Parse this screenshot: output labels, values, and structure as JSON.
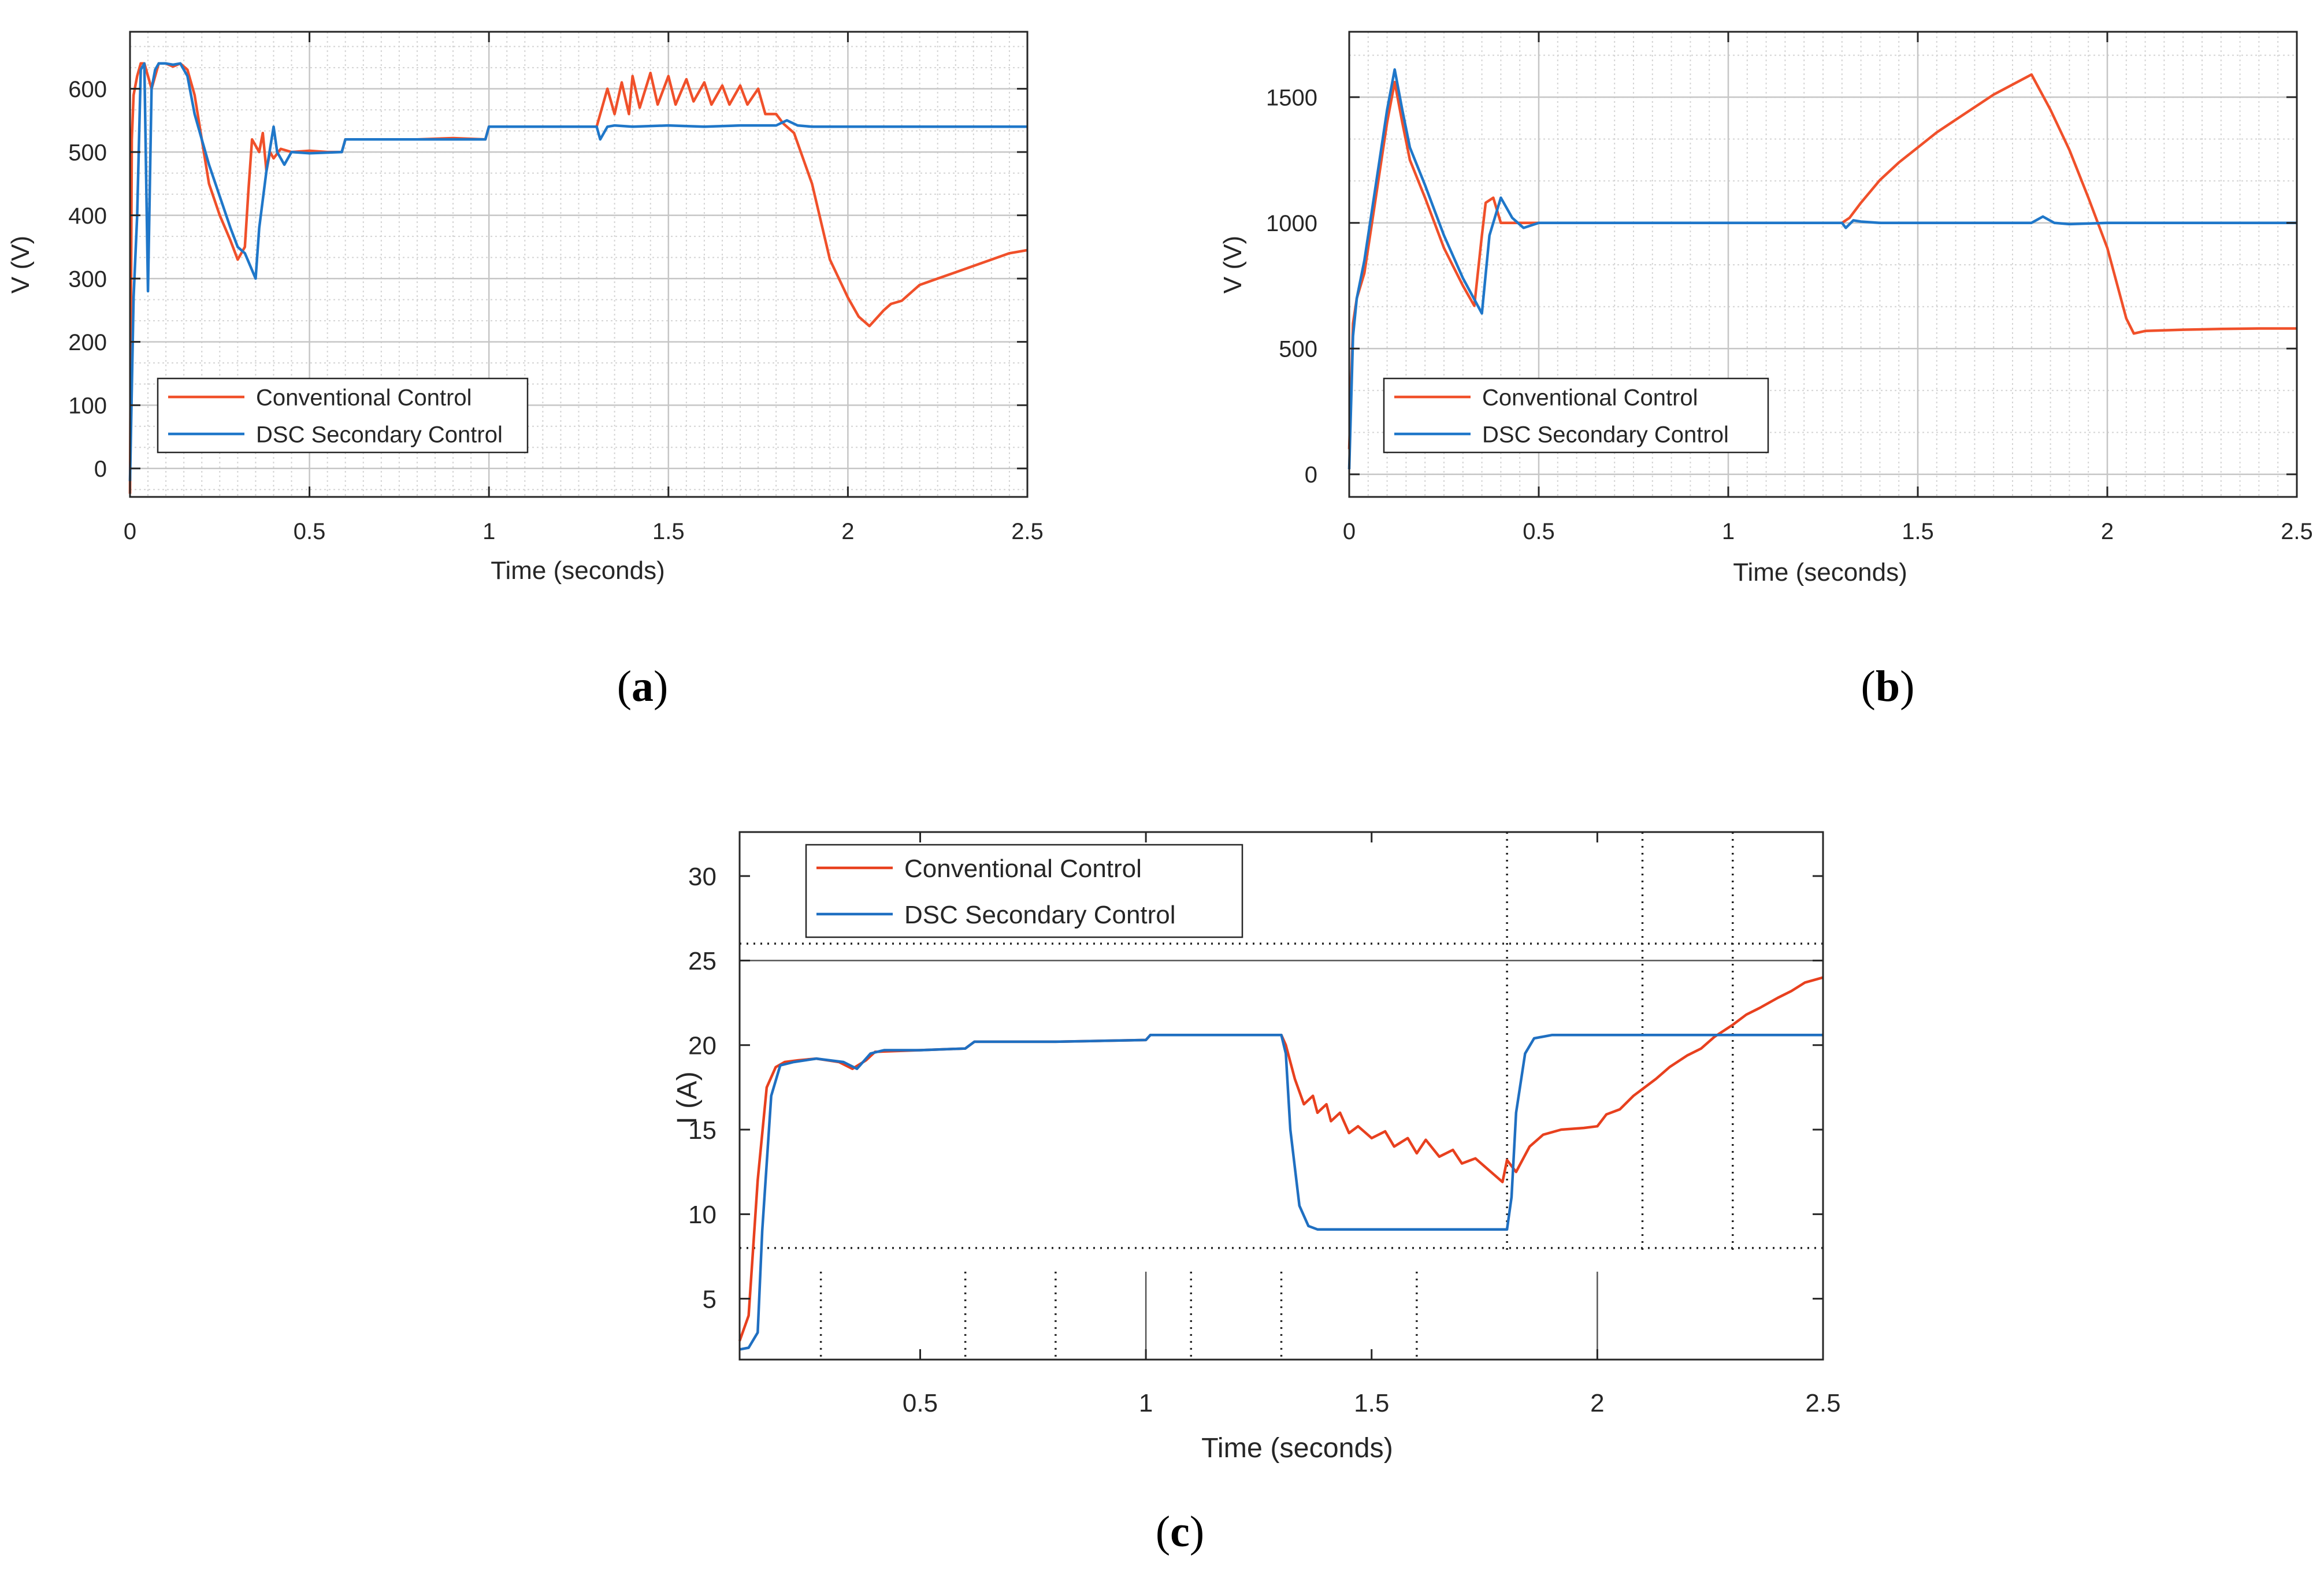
{
  "chart_data": [
    {
      "id": "a",
      "type": "line",
      "caption_letter": "a",
      "xlabel": "Time (seconds)",
      "ylabel": "V (V)",
      "xlim": [
        0,
        2.5
      ],
      "ylim": [
        -45,
        690
      ],
      "xticks": [
        0,
        0.5,
        1,
        1.5,
        2,
        2.5
      ],
      "xtick_labels": [
        "0",
        "0.5",
        "1",
        "1.5",
        "2",
        "2.5"
      ],
      "yticks": [
        0,
        100,
        200,
        300,
        400,
        500,
        600
      ],
      "ytick_labels": [
        "0",
        "100",
        "200",
        "300",
        "400",
        "500",
        "600"
      ],
      "grid": true,
      "legend_position": "bottom-left",
      "series": [
        {
          "name": "Conventional Control",
          "color": "#f0502a",
          "x": [
            0,
            0.005,
            0.01,
            0.02,
            0.03,
            0.04,
            0.05,
            0.06,
            0.08,
            0.1,
            0.12,
            0.14,
            0.16,
            0.18,
            0.2,
            0.22,
            0.25,
            0.28,
            0.3,
            0.32,
            0.33,
            0.34,
            0.36,
            0.37,
            0.38,
            0.39,
            0.4,
            0.42,
            0.45,
            0.5,
            0.55,
            0.59,
            0.6,
            0.7,
            0.8,
            0.9,
            0.99,
            1.0,
            1.1,
            1.2,
            1.3,
            1.31,
            1.33,
            1.35,
            1.37,
            1.39,
            1.4,
            1.42,
            1.45,
            1.47,
            1.5,
            1.52,
            1.55,
            1.57,
            1.6,
            1.62,
            1.65,
            1.67,
            1.7,
            1.72,
            1.75,
            1.77,
            1.8,
            1.82,
            1.85,
            1.9,
            1.95,
            2.0,
            2.03,
            2.06,
            2.1,
            2.12,
            2.15,
            2.18,
            2.2,
            2.25,
            2.3,
            2.35,
            2.4,
            2.45,
            2.5
          ],
          "y": [
            -40,
            520,
            590,
            620,
            640,
            640,
            620,
            600,
            640,
            640,
            635,
            640,
            630,
            590,
            520,
            450,
            400,
            360,
            330,
            350,
            440,
            520,
            500,
            530,
            470,
            500,
            490,
            505,
            500,
            502,
            500,
            500,
            520,
            520,
            520,
            522,
            520,
            540,
            540,
            540,
            540,
            560,
            600,
            560,
            610,
            560,
            620,
            570,
            625,
            575,
            620,
            575,
            615,
            580,
            610,
            575,
            605,
            575,
            605,
            575,
            600,
            560,
            560,
            545,
            530,
            450,
            330,
            270,
            240,
            225,
            250,
            260,
            265,
            280,
            290,
            300,
            310,
            320,
            330,
            340,
            345
          ]
        },
        {
          "name": "DSC Secondary Control",
          "color": "#1f77c9",
          "x": [
            0,
            0.01,
            0.02,
            0.03,
            0.04,
            0.05,
            0.06,
            0.07,
            0.08,
            0.1,
            0.12,
            0.14,
            0.16,
            0.18,
            0.2,
            0.22,
            0.25,
            0.28,
            0.3,
            0.32,
            0.35,
            0.36,
            0.38,
            0.4,
            0.41,
            0.43,
            0.45,
            0.5,
            0.59,
            0.6,
            0.7,
            0.8,
            0.9,
            0.99,
            1.0,
            1.1,
            1.2,
            1.3,
            1.31,
            1.33,
            1.35,
            1.4,
            1.5,
            1.6,
            1.7,
            1.8,
            1.83,
            1.86,
            1.9,
            2.0,
            2.1,
            2.2,
            2.3,
            2.4,
            2.5
          ],
          "y": [
            -20,
            270,
            400,
            630,
            640,
            280,
            600,
            630,
            640,
            640,
            638,
            640,
            620,
            560,
            520,
            480,
            430,
            380,
            350,
            340,
            300,
            380,
            470,
            540,
            500,
            480,
            500,
            498,
            500,
            520,
            520,
            520,
            520,
            520,
            540,
            540,
            540,
            540,
            520,
            540,
            542,
            540,
            542,
            540,
            542,
            542,
            550,
            542,
            540,
            540,
            540,
            540,
            540,
            540,
            540
          ]
        }
      ]
    },
    {
      "id": "b",
      "type": "line",
      "caption_letter": "b",
      "xlabel": "Time (seconds)",
      "ylabel": "V (V)",
      "xlim": [
        0,
        2.5
      ],
      "ylim": [
        -90,
        1760
      ],
      "xticks": [
        0,
        0.5,
        1,
        1.5,
        2,
        2.5
      ],
      "xtick_labels": [
        "0",
        "0.5",
        "1",
        "1.5",
        "2",
        "2.5"
      ],
      "yticks": [
        0,
        500,
        1000,
        1500
      ],
      "ytick_labels": [
        "0",
        "500",
        "1000",
        "1500"
      ],
      "grid": true,
      "legend_position": "bottom-left",
      "series": [
        {
          "name": "Conventional Control",
          "color": "#f0502a",
          "x": [
            0,
            0.01,
            0.02,
            0.04,
            0.06,
            0.08,
            0.1,
            0.12,
            0.14,
            0.16,
            0.2,
            0.25,
            0.3,
            0.33,
            0.35,
            0.36,
            0.38,
            0.4,
            0.45,
            0.5,
            0.6,
            0.8,
            1.0,
            1.2,
            1.3,
            1.32,
            1.35,
            1.4,
            1.45,
            1.5,
            1.55,
            1.6,
            1.65,
            1.7,
            1.75,
            1.8,
            1.85,
            1.9,
            1.95,
            2.0,
            2.05,
            2.07,
            2.1,
            2.2,
            2.3,
            2.4,
            2.5
          ],
          "y": [
            100,
            600,
            700,
            800,
            1000,
            1200,
            1400,
            1560,
            1400,
            1250,
            1100,
            900,
            750,
            670,
            950,
            1080,
            1100,
            1000,
            1000,
            1000,
            1000,
            1000,
            1000,
            1000,
            1000,
            1020,
            1080,
            1170,
            1240,
            1300,
            1360,
            1410,
            1460,
            1510,
            1550,
            1590,
            1450,
            1290,
            1100,
            900,
            620,
            560,
            570,
            575,
            578,
            580,
            580
          ]
        },
        {
          "name": "DSC Secondary Control",
          "color": "#1f77c9",
          "x": [
            0,
            0.01,
            0.02,
            0.04,
            0.06,
            0.08,
            0.1,
            0.12,
            0.14,
            0.16,
            0.2,
            0.25,
            0.3,
            0.35,
            0.37,
            0.4,
            0.43,
            0.46,
            0.5,
            0.6,
            0.8,
            1.0,
            1.2,
            1.3,
            1.31,
            1.33,
            1.35,
            1.4,
            1.6,
            1.8,
            1.83,
            1.86,
            1.9,
            2.0,
            2.2,
            2.5
          ],
          "y": [
            20,
            550,
            700,
            850,
            1050,
            1250,
            1450,
            1610,
            1450,
            1300,
            1150,
            950,
            780,
            640,
            950,
            1100,
            1020,
            980,
            1000,
            1000,
            1000,
            1000,
            1000,
            1000,
            980,
            1010,
            1005,
            1000,
            1000,
            1000,
            1025,
            1000,
            995,
            1000,
            1000,
            1000
          ]
        }
      ]
    },
    {
      "id": "c",
      "type": "line",
      "caption_letter": "c",
      "xlabel": "Time (seconds)",
      "ylabel": "I (A)",
      "xlim": [
        0.1,
        2.5
      ],
      "ylim": [
        1.4,
        32.6
      ],
      "xticks": [
        0.5,
        1,
        1.5,
        2,
        2.5
      ],
      "xtick_labels": [
        "0.5",
        "1",
        "1.5",
        "2",
        "2.5"
      ],
      "yticks": [
        5,
        10,
        15,
        20,
        25,
        30
      ],
      "ytick_labels": [
        "5",
        "10",
        "15",
        "20",
        "25",
        "30"
      ],
      "grid": false,
      "legend_position": "top-left",
      "series": [
        {
          "name": "Conventional Control",
          "color": "#e8401e",
          "x": [
            0.1,
            0.12,
            0.14,
            0.16,
            0.18,
            0.2,
            0.23,
            0.27,
            0.32,
            0.35,
            0.38,
            0.4,
            0.5,
            0.6,
            0.62,
            0.8,
            1.0,
            1.01,
            1.2,
            1.3,
            1.31,
            1.33,
            1.35,
            1.37,
            1.38,
            1.4,
            1.41,
            1.43,
            1.45,
            1.47,
            1.5,
            1.53,
            1.55,
            1.58,
            1.6,
            1.62,
            1.65,
            1.68,
            1.7,
            1.73,
            1.76,
            1.79,
            1.8,
            1.82,
            1.85,
            1.88,
            1.92,
            1.97,
            2.0,
            2.02,
            2.05,
            2.08,
            2.1,
            2.13,
            2.16,
            2.2,
            2.23,
            2.26,
            2.3,
            2.33,
            2.36,
            2.4,
            2.43,
            2.46,
            2.5
          ],
          "y": [
            2.5,
            4,
            12,
            17.5,
            18.7,
            19,
            19.1,
            19.2,
            19,
            18.6,
            19.1,
            19.6,
            19.7,
            19.8,
            20.2,
            20.2,
            20.3,
            20.6,
            20.6,
            20.6,
            20,
            18,
            16.5,
            17,
            16,
            16.5,
            15.5,
            16,
            14.8,
            15.2,
            14.5,
            14.9,
            14,
            14.5,
            13.6,
            14.4,
            13.4,
            13.8,
            13,
            13.3,
            12.6,
            11.9,
            13.2,
            12.5,
            14,
            14.7,
            15,
            15.1,
            15.2,
            15.9,
            16.2,
            17,
            17.4,
            18,
            18.7,
            19.4,
            19.8,
            20.5,
            21.2,
            21.8,
            22.2,
            22.8,
            23.2,
            23.7,
            24
          ]
        },
        {
          "name": "DSC Secondary Control",
          "color": "#1f6fc1",
          "x": [
            0.1,
            0.12,
            0.14,
            0.15,
            0.17,
            0.19,
            0.22,
            0.27,
            0.33,
            0.36,
            0.39,
            0.42,
            0.5,
            0.6,
            0.62,
            0.8,
            1.0,
            1.01,
            1.2,
            1.3,
            1.31,
            1.32,
            1.34,
            1.36,
            1.38,
            1.45,
            1.6,
            1.8,
            1.81,
            1.82,
            1.84,
            1.86,
            1.9,
            2.0,
            2.2,
            2.5
          ],
          "y": [
            2,
            2.1,
            3,
            9,
            17,
            18.8,
            19,
            19.2,
            19,
            18.6,
            19.5,
            19.7,
            19.7,
            19.8,
            20.2,
            20.2,
            20.3,
            20.6,
            20.6,
            20.6,
            19.5,
            15,
            10.5,
            9.3,
            9.1,
            9.1,
            9.1,
            9.1,
            11,
            16,
            19.5,
            20.4,
            20.6,
            20.6,
            20.6,
            20.6
          ]
        }
      ],
      "reference_lines": {
        "solid_horizontal_y": [
          25
        ],
        "dotted_horizontal_y": [
          26,
          8
        ],
        "dotted_vertical_full_x": [
          1.8
        ],
        "dotted_vertical_top_x": [
          2.1,
          2.3
        ],
        "dotted_vertical_bottom_x": [
          0.28,
          0.6,
          0.8,
          1.1,
          1.3,
          1.6
        ],
        "solid_vertical_bottom_x": [
          1,
          2
        ]
      }
    }
  ]
}
